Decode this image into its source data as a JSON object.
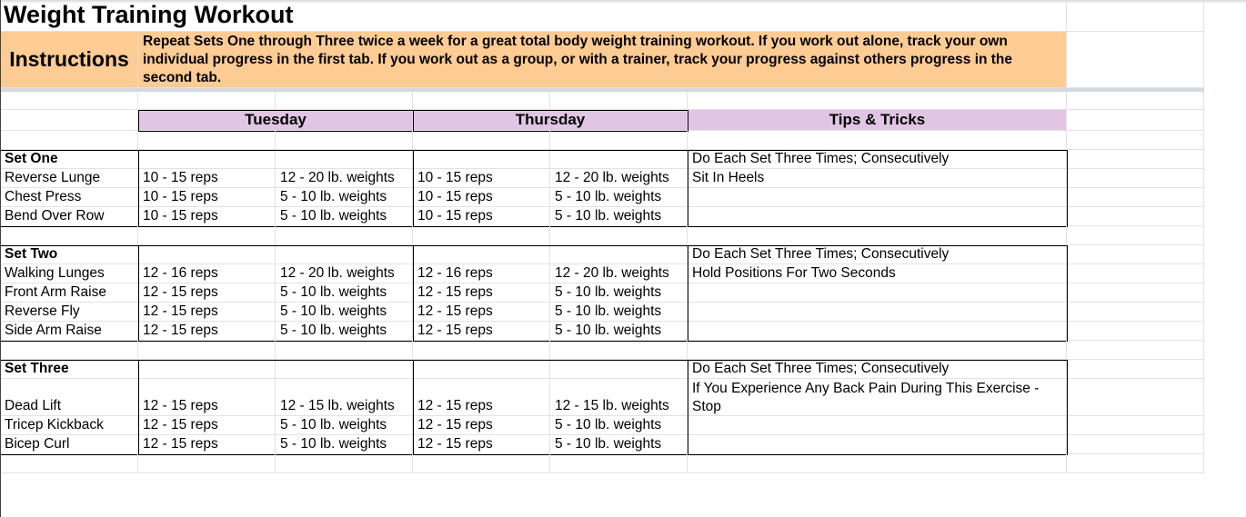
{
  "title": "Weight Training Workout",
  "instructions": {
    "label": "Instructions",
    "text": "Repeat Sets One through Three twice a week for a great total body weight training workout. If you work out alone, track your own individual progress in the first tab. If you work out as a group, or with a trainer, track your progress against others progress in the second tab."
  },
  "headers": {
    "tuesday": "Tuesday",
    "thursday": "Thursday",
    "tips": "Tips & Tricks"
  },
  "colors": {
    "instructions_bg": "#fdcb94",
    "header_bg": "#e0c6e2"
  },
  "sets": [
    {
      "name": "Set One",
      "tip": "Do Each Set Three Times; Consecutively",
      "exercises": [
        {
          "name": "Reverse Lunge",
          "tue_reps": "10 - 15 reps",
          "tue_weight": "12 - 20 lb. weights",
          "thu_reps": "10 - 15 reps",
          "thu_weight": "12 - 20 lb. weights",
          "tip": "Sit In Heels"
        },
        {
          "name": "Chest Press",
          "tue_reps": "10 - 15 reps",
          "tue_weight": "5 - 10 lb. weights",
          "thu_reps": "10 - 15 reps",
          "thu_weight": "5 - 10 lb. weights",
          "tip": ""
        },
        {
          "name": "Bend Over Row",
          "tue_reps": "10 - 15 reps",
          "tue_weight": "5 - 10 lb. weights",
          "thu_reps": "10 - 15 reps",
          "thu_weight": "5 - 10 lb. weights",
          "tip": ""
        }
      ]
    },
    {
      "name": "Set Two",
      "tip": "Do Each Set Three Times; Consecutively",
      "exercises": [
        {
          "name": "Walking Lunges",
          "tue_reps": "12 - 16 reps",
          "tue_weight": "12 - 20 lb. weights",
          "thu_reps": "12 - 16 reps",
          "thu_weight": "12 - 20 lb. weights",
          "tip": "Hold Positions For Two Seconds"
        },
        {
          "name": "Front Arm Raise",
          "tue_reps": "12 - 15 reps",
          "tue_weight": "5 - 10 lb. weights",
          "thu_reps": "12 - 15 reps",
          "thu_weight": "5 - 10 lb. weights",
          "tip": ""
        },
        {
          "name": "Reverse Fly",
          "tue_reps": "12 - 15 reps",
          "tue_weight": "5 - 10 lb. weights",
          "thu_reps": "12 - 15 reps",
          "thu_weight": "5 - 10 lb. weights",
          "tip": ""
        },
        {
          "name": "Side Arm Raise",
          "tue_reps": "12 - 15 reps",
          "tue_weight": "5 - 10 lb. weights",
          "thu_reps": "12 - 15 reps",
          "thu_weight": "5 - 10 lb. weights",
          "tip": ""
        }
      ]
    },
    {
      "name": "Set Three",
      "tip": "Do Each Set Three Times; Consecutively",
      "exercises": [
        {
          "name": "Dead Lift",
          "tue_reps": "12 - 15 reps",
          "tue_weight": "12 - 15 lb. weights",
          "thu_reps": "12 - 15 reps",
          "thu_weight": "12 - 15 lb. weights",
          "tip": "If You Experience Any Back Pain During This Exercise - Stop"
        },
        {
          "name": "Tricep Kickback",
          "tue_reps": "12 - 15 reps",
          "tue_weight": "5 - 10 lb. weights",
          "thu_reps": "12 - 15 reps",
          "thu_weight": "5 - 10 lb. weights",
          "tip": ""
        },
        {
          "name": "Bicep Curl",
          "tue_reps": "12 - 15 reps",
          "tue_weight": "5 - 10 lb. weights",
          "thu_reps": "12 - 15 reps",
          "thu_weight": "5 - 10 lb. weights",
          "tip": ""
        }
      ]
    }
  ]
}
